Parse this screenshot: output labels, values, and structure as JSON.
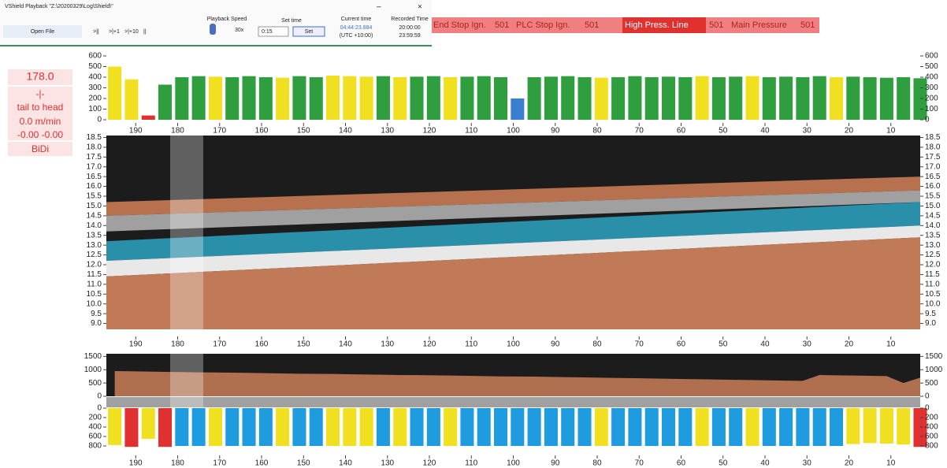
{
  "window": {
    "title": "VShield Playback  \"Z:\\20200329\\Log\\Shield\\\"",
    "open_file": "Open File",
    "buttons": [
      ">||",
      ">|+1",
      ">|+10",
      "||"
    ],
    "speed_label": "Playback Speed",
    "speed": "30x",
    "set_time_label": "Set time",
    "set_time_value": "0:15",
    "set_button": "Set",
    "current_time_label": "Current time",
    "current_time": "04:44:23.884",
    "utc": "(UTC +10:00)",
    "recorded_label": "Recorded Time",
    "recorded_start": "20:00:00",
    "recorded_end": "23:59:59",
    "minimize": "–",
    "close": "×"
  },
  "status": [
    "End Stop Ign.",
    "501",
    "PLC Stop Ign.",
    "501",
    "High Press. Line",
    "501",
    "Main Pressure",
    "501"
  ],
  "side": [
    "178.0",
    "-|-",
    "tail to head",
    "0.0 m/min",
    "-0.00  -0.00",
    "BiDi"
  ],
  "chart_data": [
    {
      "type": "bar",
      "xlim": [
        197,
        3
      ],
      "ylim": [
        0,
        640
      ],
      "yticks": [
        0,
        100,
        200,
        300,
        400,
        500,
        600
      ],
      "xticks": [
        190,
        180,
        170,
        160,
        150,
        140,
        130,
        120,
        110,
        100,
        90,
        80,
        70,
        60,
        50,
        40,
        30,
        20,
        10
      ],
      "x": [
        195,
        191,
        187,
        183,
        179,
        175,
        171,
        167,
        163,
        159,
        155,
        151,
        147,
        143,
        139,
        135,
        131,
        127,
        123,
        119,
        115,
        111,
        107,
        103,
        99,
        95,
        91,
        87,
        83,
        79,
        75,
        71,
        67,
        63,
        59,
        55,
        51,
        47,
        43,
        39,
        35,
        31,
        27,
        23,
        19,
        15,
        11,
        7,
        3
      ],
      "values": [
        500,
        380,
        40,
        330,
        400,
        410,
        405,
        400,
        410,
        400,
        395,
        410,
        400,
        415,
        410,
        405,
        410,
        400,
        405,
        410,
        400,
        405,
        410,
        400,
        200,
        400,
        405,
        410,
        400,
        395,
        400,
        410,
        400,
        405,
        400,
        410,
        400,
        405,
        410,
        400,
        405,
        400,
        410,
        400,
        405,
        400,
        395,
        400,
        390
      ],
      "colors": [
        "#f0e020",
        "#f0e020",
        "#e03030",
        "#2e9e3e",
        "#2e9e3e",
        "#2e9e3e",
        "#f0e020",
        "#2e9e3e",
        "#2e9e3e",
        "#2e9e3e",
        "#f0e020",
        "#2e9e3e",
        "#2e9e3e",
        "#f0e020",
        "#f0e020",
        "#f0e020",
        "#2e9e3e",
        "#f0e020",
        "#2e9e3e",
        "#2e9e3e",
        "#f0e020",
        "#2e9e3e",
        "#2e9e3e",
        "#2e9e3e",
        "#3a7fd0",
        "#2e9e3e",
        "#2e9e3e",
        "#2e9e3e",
        "#2e9e3e",
        "#f0e020",
        "#2e9e3e",
        "#2e9e3e",
        "#2e9e3e",
        "#2e9e3e",
        "#2e9e3e",
        "#f0e020",
        "#2e9e3e",
        "#2e9e3e",
        "#f0e020",
        "#2e9e3e",
        "#2e9e3e",
        "#2e9e3e",
        "#2e9e3e",
        "#f0e020",
        "#2e9e3e",
        "#2e9e3e",
        "#2e9e3e",
        "#2e9e3e",
        "#2e9e3e"
      ]
    },
    {
      "type": "area",
      "xlim": [
        197,
        3
      ],
      "ylim": [
        8.7,
        18.6
      ],
      "yticks": [
        {
          "value": 9,
          "label": "9.0"
        },
        9.5,
        {
          "value": 10,
          "label": "10.0"
        },
        10.5,
        {
          "value": 11,
          "label": "11.0"
        },
        11.5,
        {
          "value": 12,
          "label": "12.0"
        },
        12.5,
        {
          "value": 13,
          "label": "13.0"
        },
        13.5,
        {
          "value": 14,
          "label": "14.0"
        },
        14.5,
        {
          "value": 15,
          "label": "15.0"
        },
        15.5,
        {
          "value": 16,
          "label": "16.0"
        },
        16.5,
        {
          "value": 17,
          "label": "17.0"
        },
        17.5,
        {
          "value": 18,
          "label": "18.0"
        },
        18.5
      ],
      "xticks": [
        190,
        180,
        170,
        160,
        150,
        140,
        130,
        120,
        110,
        100,
        90,
        80,
        70,
        60,
        50,
        40,
        30,
        20,
        10
      ],
      "x": [
        197,
        3
      ],
      "series": [
        {
          "color": "#b8714f",
          "high": [
            15.2,
            16.5
          ],
          "low": [
            14.5,
            15.8
          ]
        },
        {
          "color": "#a0a0a0",
          "high": [
            14.5,
            15.8
          ],
          "low": [
            13.7,
            15.2
          ]
        },
        {
          "color": "#2a8fa8",
          "high": [
            13.2,
            15.2
          ],
          "low": [
            12.2,
            14.0
          ]
        },
        {
          "color": "#e8e8e8",
          "high": [
            12.2,
            14.0
          ],
          "low": [
            11.4,
            13.4
          ]
        },
        {
          "color": "#c07a58",
          "high": [
            11.4,
            13.4
          ],
          "low": [
            8.7,
            8.7
          ]
        }
      ]
    },
    {
      "type": "area",
      "xlim": [
        197,
        3
      ],
      "ylim": [
        0,
        1600
      ],
      "yticks": [
        0,
        500,
        1000,
        1500
      ],
      "x": [
        195,
        191,
        187,
        183,
        179,
        175,
        171,
        167,
        163,
        159,
        155,
        151,
        147,
        143,
        139,
        135,
        131,
        127,
        123,
        119,
        115,
        111,
        107,
        103,
        99,
        95,
        91,
        87,
        83,
        79,
        75,
        71,
        67,
        63,
        59,
        55,
        51,
        47,
        43,
        39,
        35,
        31,
        27,
        23,
        19,
        15,
        11,
        7,
        3
      ],
      "series": [
        {
          "color": "#b07050",
          "values": [
            950,
            940,
            930,
            920,
            910,
            900,
            895,
            890,
            880,
            870,
            860,
            850,
            845,
            840,
            830,
            820,
            810,
            800,
            795,
            790,
            780,
            770,
            760,
            750,
            745,
            740,
            730,
            720,
            710,
            700,
            690,
            680,
            670,
            660,
            650,
            640,
            630,
            620,
            610,
            600,
            590,
            580,
            800,
            790,
            780,
            770,
            760,
            500,
            700
          ]
        }
      ]
    },
    {
      "type": "bar",
      "inverted": true,
      "xlim": [
        197,
        3
      ],
      "ylim": [
        0,
        900
      ],
      "yticks": [
        0,
        200,
        400,
        600,
        800
      ],
      "xticks": [
        190,
        180,
        170,
        160,
        150,
        140,
        130,
        120,
        110,
        100,
        90,
        80,
        70,
        60,
        50,
        40,
        30,
        20,
        10
      ],
      "x": [
        195,
        191,
        187,
        183,
        179,
        175,
        171,
        167,
        163,
        159,
        155,
        151,
        147,
        143,
        139,
        135,
        131,
        127,
        123,
        119,
        115,
        111,
        107,
        103,
        99,
        95,
        91,
        87,
        83,
        79,
        75,
        71,
        67,
        63,
        59,
        55,
        51,
        47,
        43,
        39,
        35,
        31,
        27,
        23,
        19,
        15,
        11,
        7,
        3
      ],
      "values": [
        780,
        820,
        650,
        820,
        800,
        800,
        800,
        800,
        800,
        800,
        800,
        800,
        800,
        800,
        800,
        800,
        800,
        800,
        800,
        800,
        800,
        800,
        800,
        800,
        800,
        800,
        800,
        800,
        800,
        800,
        800,
        800,
        800,
        800,
        800,
        800,
        800,
        800,
        800,
        800,
        800,
        800,
        800,
        800,
        760,
        740,
        750,
        770,
        820
      ],
      "colors": [
        "#f0e020",
        "#e03030",
        "#f0e020",
        "#e03030",
        "#1f9be0",
        "#1f9be0",
        "#f0e020",
        "#1f9be0",
        "#1f9be0",
        "#1f9be0",
        "#f0e020",
        "#1f9be0",
        "#1f9be0",
        "#f0e020",
        "#f0e020",
        "#f0e020",
        "#1f9be0",
        "#f0e020",
        "#1f9be0",
        "#1f9be0",
        "#f0e020",
        "#1f9be0",
        "#1f9be0",
        "#1f9be0",
        "#1f9be0",
        "#1f9be0",
        "#1f9be0",
        "#1f9be0",
        "#1f9be0",
        "#f0e020",
        "#1f9be0",
        "#1f9be0",
        "#1f9be0",
        "#1f9be0",
        "#1f9be0",
        "#f0e020",
        "#1f9be0",
        "#1f9be0",
        "#f0e020",
        "#1f9be0",
        "#1f9be0",
        "#1f9be0",
        "#1f9be0",
        "#1f9be0",
        "#f0e020",
        "#f0e020",
        "#f0e020",
        "#f0e020",
        "#e03030"
      ]
    }
  ]
}
